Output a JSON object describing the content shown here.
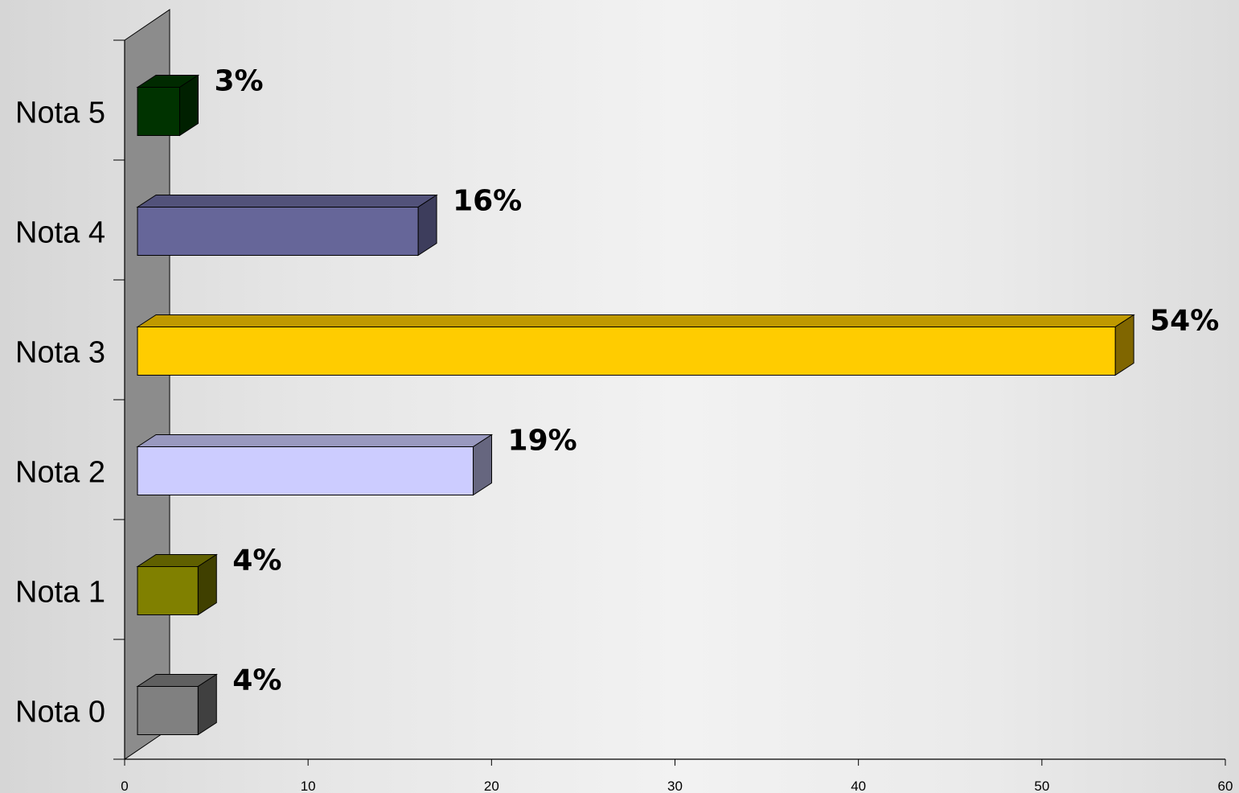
{
  "chart_data": {
    "type": "bar",
    "orientation": "horizontal",
    "three_d": true,
    "categories": [
      "Nota 5",
      "Nota 4",
      "Nota 3",
      "Nota 2",
      "Nota 1",
      "Nota 0"
    ],
    "values": [
      3,
      16,
      54,
      19,
      4,
      4
    ],
    "value_labels": [
      "3%",
      "16%",
      "54%",
      "19%",
      "4%",
      "4%"
    ],
    "colors": [
      "#003300",
      "#666699",
      "#FFCC00",
      "#CCCCFF",
      "#808000",
      "#808080"
    ],
    "side_colors": [
      "#002000",
      "#3d3d5c",
      "#806600",
      "#66667f",
      "#404000",
      "#404040"
    ],
    "top_colors": [
      "#002a00",
      "#52527a",
      "#bf9900",
      "#9999bf",
      "#606000",
      "#606060"
    ],
    "xlim": [
      0,
      60
    ],
    "xticks": [
      0,
      10,
      20,
      30,
      40,
      50,
      60
    ],
    "title": "",
    "xlabel": "",
    "ylabel": "",
    "grid": false,
    "legend": false,
    "wall_color": "#8c8c8c"
  }
}
